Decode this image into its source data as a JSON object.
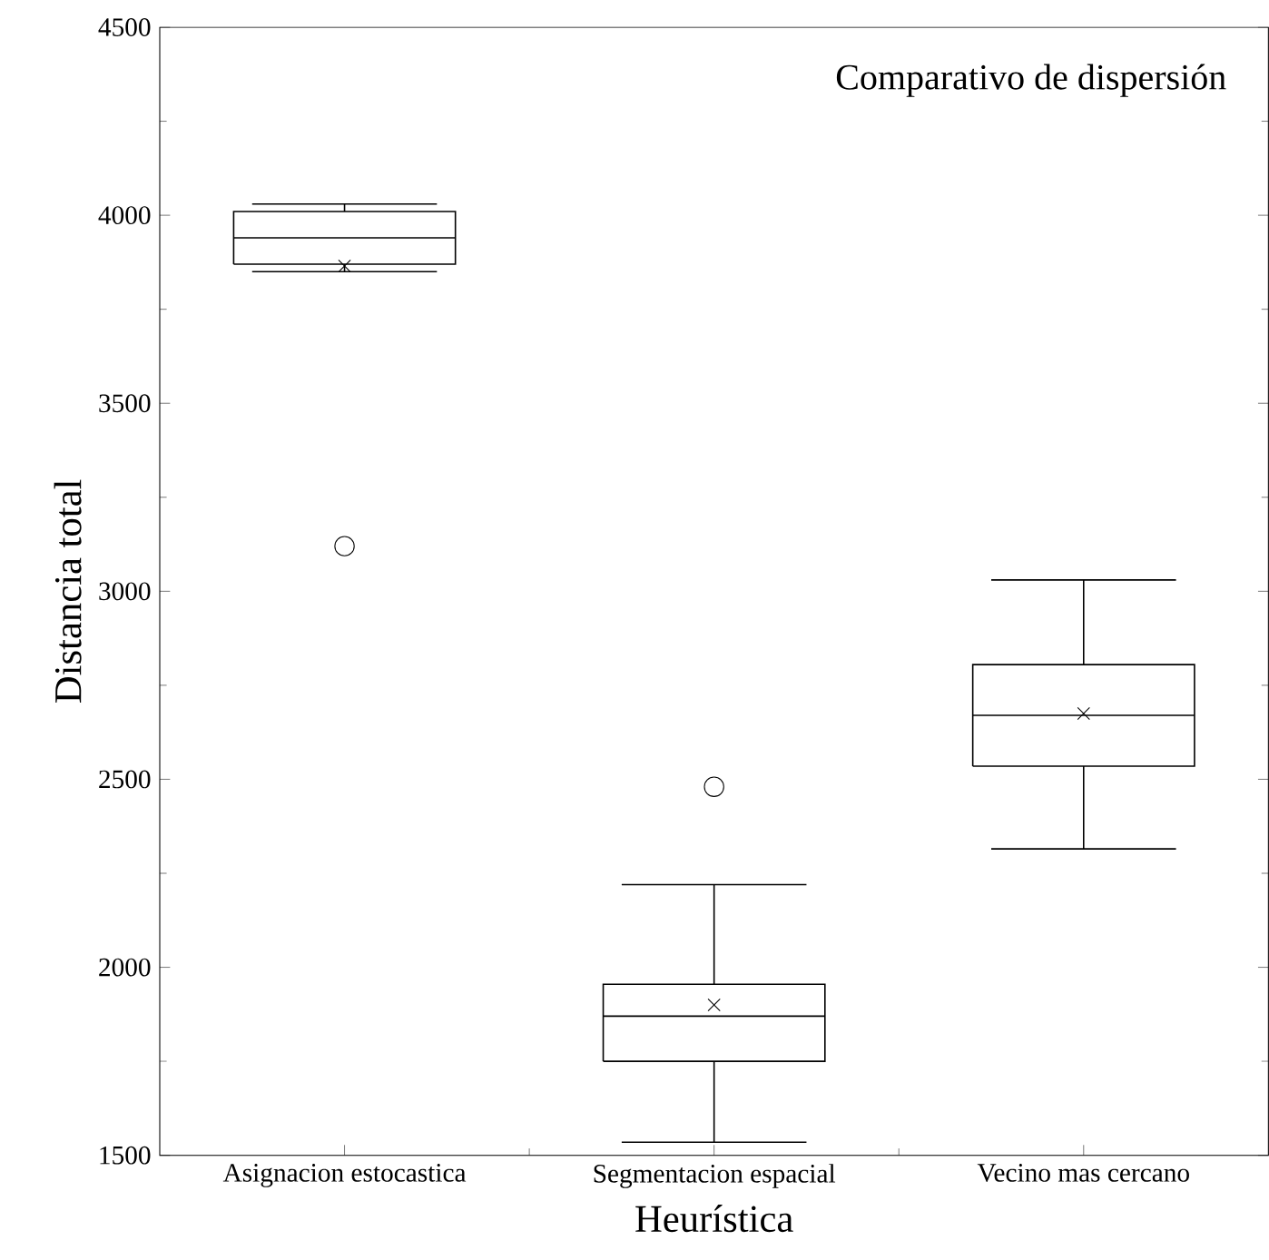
{
  "chart_data": {
    "type": "box",
    "title": "Comparativo de dispersión",
    "xlabel": "Heurística",
    "ylabel": "Distancia total",
    "categories": [
      "Asignacion estocastica",
      "Segmentacion espacial",
      "Vecino mas cercano"
    ],
    "boxes": [
      {
        "low": 3850,
        "q1": 3870,
        "median": 3940,
        "q3": 4010,
        "high": 4030,
        "mean": 3865,
        "outliers": [
          3120
        ]
      },
      {
        "low": 1535,
        "q1": 1750,
        "median": 1870,
        "q3": 1955,
        "high": 2220,
        "mean": 1900,
        "outliers": [
          2480
        ]
      },
      {
        "low": 2315,
        "q1": 2535,
        "median": 2670,
        "q3": 2805,
        "high": 3030,
        "mean": 2675
      }
    ],
    "ylim": [
      1500,
      4500
    ],
    "yticks": [
      1500,
      2000,
      2500,
      3000,
      3500,
      4000,
      4500
    ]
  }
}
